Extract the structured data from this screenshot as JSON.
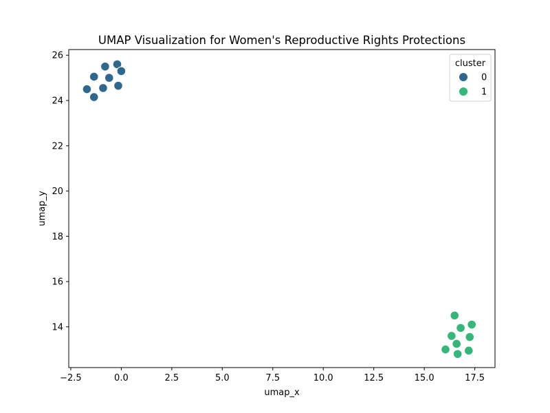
{
  "chart_data": {
    "type": "scatter",
    "title": "UMAP Visualization for Women's Reproductive Rights Protections",
    "xlabel": "umap_x",
    "ylabel": "umap_y",
    "xlim": [
      -2.6,
      18.5
    ],
    "ylim": [
      12.2,
      26.25
    ],
    "xticks": [
      -2.5,
      0.0,
      2.5,
      5.0,
      7.5,
      10.0,
      12.5,
      15.0,
      17.5
    ],
    "xtick_labels": [
      "−2.5",
      "0.0",
      "2.5",
      "5.0",
      "7.5",
      "10.0",
      "12.5",
      "15.0",
      "17.5"
    ],
    "yticks": [
      14,
      16,
      18,
      20,
      22,
      24,
      26
    ],
    "ytick_labels": [
      "14",
      "16",
      "18",
      "20",
      "22",
      "24",
      "26"
    ],
    "grid": false,
    "legend": {
      "title": "cluster",
      "placement": "top-right",
      "entries": [
        "0",
        "1"
      ]
    },
    "series": [
      {
        "name": "0",
        "color": "#30678d",
        "points": [
          {
            "x": -0.2,
            "y": 25.6
          },
          {
            "x": -0.8,
            "y": 25.5
          },
          {
            "x": 0.0,
            "y": 25.3
          },
          {
            "x": -1.35,
            "y": 25.05
          },
          {
            "x": -0.6,
            "y": 25.0
          },
          {
            "x": -0.15,
            "y": 24.65
          },
          {
            "x": -0.9,
            "y": 24.55
          },
          {
            "x": -1.7,
            "y": 24.5
          },
          {
            "x": -1.35,
            "y": 24.15
          }
        ]
      },
      {
        "name": "1",
        "color": "#35b779",
        "points": [
          {
            "x": 16.5,
            "y": 14.5
          },
          {
            "x": 17.35,
            "y": 14.1
          },
          {
            "x": 16.8,
            "y": 13.95
          },
          {
            "x": 16.35,
            "y": 13.6
          },
          {
            "x": 17.25,
            "y": 13.55
          },
          {
            "x": 16.6,
            "y": 13.25
          },
          {
            "x": 16.05,
            "y": 13.0
          },
          {
            "x": 17.2,
            "y": 12.95
          },
          {
            "x": 16.65,
            "y": 12.8
          }
        ]
      }
    ]
  }
}
